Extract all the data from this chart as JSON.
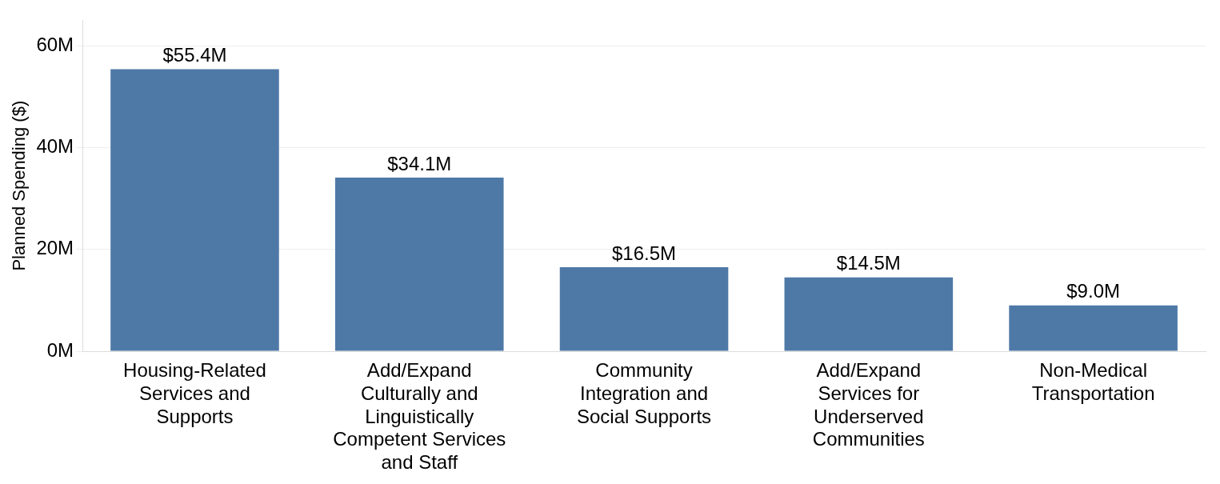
{
  "chart_data": {
    "type": "bar",
    "ylabel": "Planned Spending ($)",
    "categories": [
      "Housing-Related Services and Supports",
      "Add/Expand Culturally and Linguistically Competent Services and Staff",
      "Community Integration and Social Supports",
      "Add/Expand Services for Underserved Communities",
      "Non-Medical Transportation"
    ],
    "values": [
      55.4,
      34.1,
      16.5,
      14.5,
      9.0
    ],
    "value_labels": [
      "$55.4M",
      "$34.1M",
      "$16.5M",
      "$14.5M",
      "$9.0M"
    ],
    "color": "#4e79a7",
    "ylim": [
      0,
      65
    ],
    "yticks": [
      {
        "value": 0,
        "label": "0M"
      },
      {
        "value": 20,
        "label": "20M"
      },
      {
        "value": 40,
        "label": "40M"
      },
      {
        "value": 60,
        "label": "60M"
      }
    ],
    "grid": "y",
    "legend": false
  }
}
